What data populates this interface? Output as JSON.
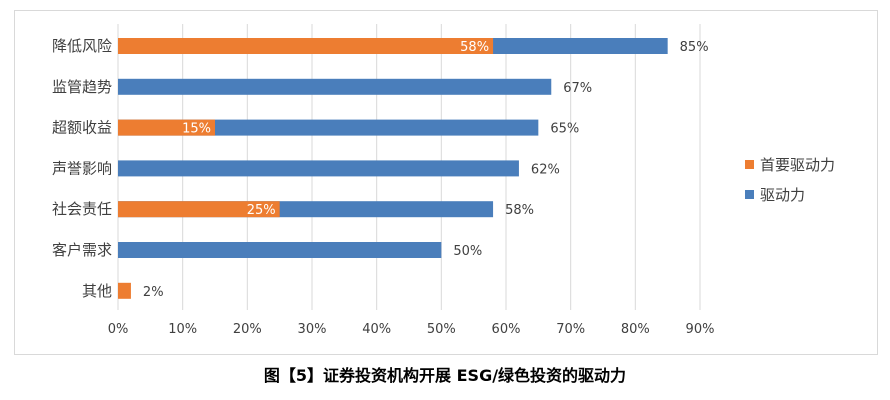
{
  "chart_data": {
    "type": "bar",
    "orientation": "horizontal",
    "categories": [
      "降低风险",
      "监管趋势",
      "超额收益",
      "声誉影响",
      "社会责任",
      "客户需求",
      "其他"
    ],
    "series": [
      {
        "name": "驱动力",
        "values": [
          85,
          67,
          65,
          62,
          58,
          50,
          null
        ],
        "labels": [
          "85%",
          "67%",
          "65%",
          "62%",
          "58%",
          "50%",
          ""
        ],
        "color": "#4a7ebb"
      },
      {
        "name": "首要驱动力",
        "values": [
          58,
          null,
          15,
          null,
          25,
          null,
          2
        ],
        "labels": [
          "58%",
          "",
          "15%",
          "",
          "25%",
          "",
          "2%"
        ],
        "color": "#ed7d31"
      }
    ],
    "xlim": [
      0,
      90
    ],
    "xticks": [
      "0%",
      "10%",
      "20%",
      "30%",
      "40%",
      "50%",
      "60%",
      "70%",
      "80%",
      "90%"
    ],
    "grid": true,
    "legend_position": "right",
    "legend": [
      "首要驱动力",
      "驱动力"
    ]
  },
  "caption": "图【5】证券投资机构开展 ESG/绿色投资的驱动力"
}
